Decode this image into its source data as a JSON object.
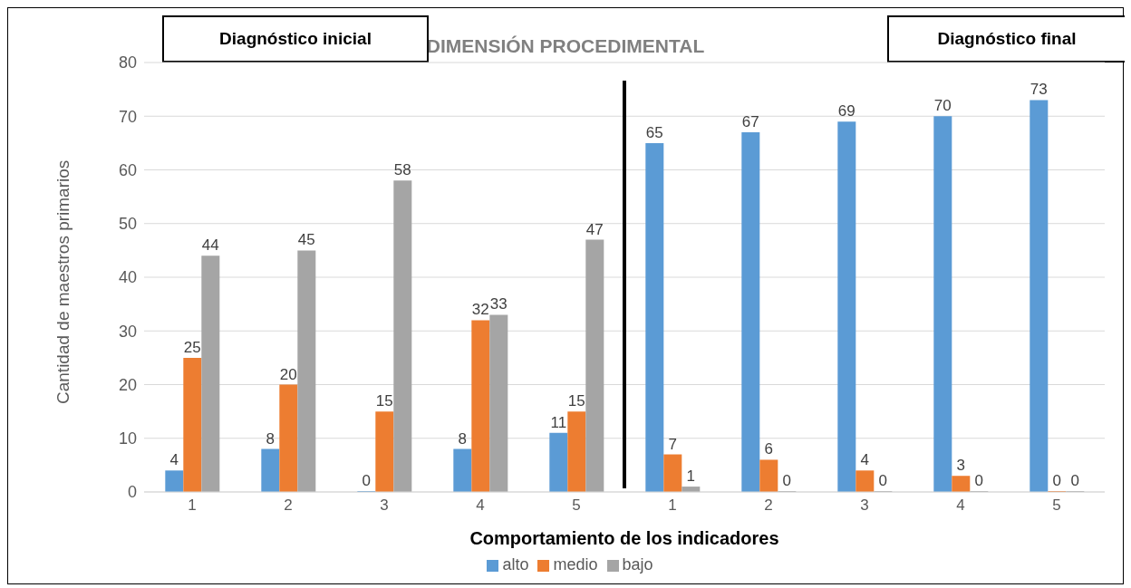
{
  "chart_data": {
    "type": "bar",
    "title": "DIMENSIÓN PROCEDIMENTAL",
    "xlabel": "Comportamiento de los indicadores",
    "ylabel": "Cantidad de maestros primarios",
    "annotations": [
      "Diagnóstico inicial",
      "Diagnóstico final"
    ],
    "categories": [
      "1",
      "2",
      "3",
      "4",
      "5",
      "1",
      "2",
      "3",
      "4",
      "5"
    ],
    "series": [
      {
        "name": "alto",
        "color": "#5b9bd5",
        "values": [
          4,
          8,
          0,
          8,
          11,
          65,
          67,
          69,
          70,
          73
        ]
      },
      {
        "name": "medio",
        "color": "#ed7d31",
        "values": [
          25,
          20,
          15,
          32,
          15,
          7,
          6,
          4,
          3,
          0
        ]
      },
      {
        "name": "bajo",
        "color": "#a5a5a5",
        "values": [
          44,
          45,
          58,
          33,
          47,
          1,
          0,
          0,
          0,
          0
        ]
      }
    ],
    "ylim": [
      0,
      80
    ],
    "yticks": [
      0,
      10,
      20,
      30,
      40,
      50,
      60,
      70,
      80
    ],
    "grid": "y",
    "legend": "bottom",
    "data_labels": true
  }
}
